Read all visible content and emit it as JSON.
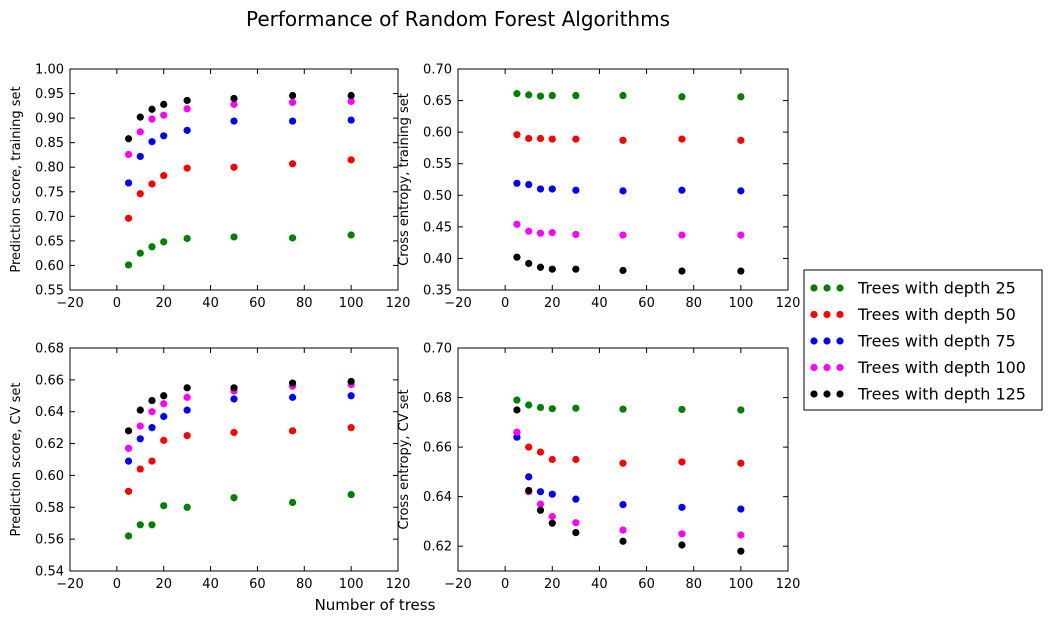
{
  "figure_title": "Performance of Random Forest Algorithms",
  "shared_xlabel": "Number of tress",
  "legend": {
    "placement": "right, outside",
    "entries": [
      {
        "label": "Trees with depth 25",
        "color": "#008000"
      },
      {
        "label": "Trees with depth 50",
        "color": "#ff0000"
      },
      {
        "label": "Trees with depth 75",
        "color": "#0000ff"
      },
      {
        "label": "Trees with depth 100",
        "color": "#ff00ff"
      },
      {
        "label": "Trees with depth 125",
        "color": "#000000"
      }
    ]
  },
  "chart_data": [
    {
      "type": "scatter",
      "position": "top-left",
      "ylabel": "Prediction score, training set",
      "xlim": [
        -20,
        120
      ],
      "xticks": [
        -20,
        0,
        20,
        40,
        60,
        80,
        100,
        120
      ],
      "xtick_labels": [
        "−20",
        "0",
        "20",
        "40",
        "60",
        "80",
        "100",
        "120"
      ],
      "ylim": [
        0.55,
        1.0
      ],
      "yticks": [
        0.55,
        0.6,
        0.65,
        0.7,
        0.75,
        0.8,
        0.85,
        0.9,
        0.95,
        1.0
      ],
      "ytick_labels": [
        "0.55",
        "0.60",
        "0.65",
        "0.70",
        "0.75",
        "0.80",
        "0.85",
        "0.90",
        "0.95",
        "1.00"
      ],
      "x": [
        5,
        10,
        15,
        20,
        30,
        50,
        75,
        100
      ],
      "series": [
        {
          "name": "Trees with depth 25",
          "color": "#008000",
          "values": [
            0.601,
            0.625,
            0.638,
            0.648,
            0.655,
            0.658,
            0.656,
            0.662
          ]
        },
        {
          "name": "Trees with depth 50",
          "color": "#ff0000",
          "values": [
            0.696,
            0.746,
            0.766,
            0.783,
            0.798,
            0.8,
            0.807,
            0.815
          ]
        },
        {
          "name": "Trees with depth 75",
          "color": "#0000ff",
          "values": [
            0.768,
            0.822,
            0.852,
            0.864,
            0.875,
            0.894,
            0.894,
            0.896
          ]
        },
        {
          "name": "Trees with depth 100",
          "color": "#ff00ff",
          "values": [
            0.826,
            0.872,
            0.898,
            0.906,
            0.919,
            0.928,
            0.932,
            0.934
          ]
        },
        {
          "name": "Trees with depth 125",
          "color": "#000000",
          "values": [
            0.858,
            0.902,
            0.918,
            0.928,
            0.936,
            0.94,
            0.946,
            0.946
          ]
        }
      ]
    },
    {
      "type": "scatter",
      "position": "top-right",
      "ylabel": "Cross entropy, training set",
      "xlim": [
        -20,
        120
      ],
      "xticks": [
        -20,
        0,
        20,
        40,
        60,
        80,
        100,
        120
      ],
      "xtick_labels": [
        "−20",
        "0",
        "20",
        "40",
        "60",
        "80",
        "100",
        "120"
      ],
      "ylim": [
        0.35,
        0.7
      ],
      "yticks": [
        0.35,
        0.4,
        0.45,
        0.5,
        0.55,
        0.6,
        0.65,
        0.7
      ],
      "ytick_labels": [
        "0.35",
        "0.40",
        "0.45",
        "0.50",
        "0.55",
        "0.60",
        "0.65",
        "0.70"
      ],
      "x": [
        5,
        10,
        15,
        20,
        30,
        50,
        75,
        100
      ],
      "series": [
        {
          "name": "Trees with depth 25",
          "color": "#008000",
          "values": [
            0.661,
            0.659,
            0.657,
            0.658,
            0.658,
            0.658,
            0.656,
            0.656
          ]
        },
        {
          "name": "Trees with depth 50",
          "color": "#ff0000",
          "values": [
            0.596,
            0.59,
            0.59,
            0.589,
            0.589,
            0.587,
            0.589,
            0.587
          ]
        },
        {
          "name": "Trees with depth 75",
          "color": "#0000ff",
          "values": [
            0.519,
            0.517,
            0.51,
            0.51,
            0.508,
            0.507,
            0.508,
            0.507
          ]
        },
        {
          "name": "Trees with depth 100",
          "color": "#ff00ff",
          "values": [
            0.454,
            0.443,
            0.44,
            0.441,
            0.438,
            0.437,
            0.437,
            0.437
          ]
        },
        {
          "name": "Trees with depth 125",
          "color": "#000000",
          "values": [
            0.402,
            0.392,
            0.386,
            0.383,
            0.383,
            0.381,
            0.38,
            0.38
          ]
        }
      ]
    },
    {
      "type": "scatter",
      "position": "bottom-left",
      "ylabel": "Prediction score, CV set",
      "xlim": [
        -20,
        120
      ],
      "xticks": [
        -20,
        0,
        20,
        40,
        60,
        80,
        100,
        120
      ],
      "xtick_labels": [
        "−20",
        "0",
        "20",
        "40",
        "60",
        "80",
        "100",
        "120"
      ],
      "ylim": [
        0.54,
        0.68
      ],
      "yticks": [
        0.54,
        0.56,
        0.58,
        0.6,
        0.62,
        0.64,
        0.66,
        0.68
      ],
      "ytick_labels": [
        "0.54",
        "0.56",
        "0.58",
        "0.60",
        "0.62",
        "0.64",
        "0.66",
        "0.68"
      ],
      "x": [
        5,
        10,
        15,
        20,
        30,
        50,
        75,
        100
      ],
      "series": [
        {
          "name": "Trees with depth 25",
          "color": "#008000",
          "values": [
            0.562,
            0.569,
            0.569,
            0.581,
            0.58,
            0.586,
            0.583,
            0.588
          ]
        },
        {
          "name": "Trees with depth 50",
          "color": "#ff0000",
          "values": [
            0.59,
            0.604,
            0.609,
            0.622,
            0.625,
            0.627,
            0.628,
            0.63
          ]
        },
        {
          "name": "Trees with depth 75",
          "color": "#0000ff",
          "values": [
            0.609,
            0.623,
            0.63,
            0.637,
            0.641,
            0.648,
            0.649,
            0.65
          ]
        },
        {
          "name": "Trees with depth 100",
          "color": "#ff00ff",
          "values": [
            0.617,
            0.631,
            0.64,
            0.645,
            0.649,
            0.653,
            0.656,
            0.657
          ]
        },
        {
          "name": "Trees with depth 125",
          "color": "#000000",
          "values": [
            0.628,
            0.641,
            0.647,
            0.65,
            0.655,
            0.655,
            0.658,
            0.659
          ]
        }
      ]
    },
    {
      "type": "scatter",
      "position": "bottom-right",
      "ylabel": "Cross entropy, CV set",
      "xlim": [
        -20,
        120
      ],
      "xticks": [
        -20,
        0,
        20,
        40,
        60,
        80,
        100,
        120
      ],
      "xtick_labels": [
        "−20",
        "0",
        "20",
        "40",
        "60",
        "80",
        "100",
        "120"
      ],
      "ylim": [
        0.61,
        0.7
      ],
      "yticks": [
        0.62,
        0.64,
        0.66,
        0.68,
        0.7
      ],
      "ytick_labels": [
        "0.62",
        "0.64",
        "0.66",
        "0.68",
        "0.70"
      ],
      "x": [
        5,
        10,
        15,
        20,
        30,
        50,
        75,
        100
      ],
      "series": [
        {
          "name": "Trees with depth 25",
          "color": "#008000",
          "values": [
            0.679,
            0.677,
            0.676,
            0.6755,
            0.6757,
            0.6753,
            0.6752,
            0.675
          ]
        },
        {
          "name": "Trees with depth 50",
          "color": "#ff0000",
          "values": [
            0.666,
            0.66,
            0.658,
            0.655,
            0.655,
            0.6535,
            0.654,
            0.6535
          ]
        },
        {
          "name": "Trees with depth 75",
          "color": "#0000ff",
          "values": [
            0.664,
            0.648,
            0.642,
            0.641,
            0.639,
            0.6368,
            0.6357,
            0.635
          ]
        },
        {
          "name": "Trees with depth 100",
          "color": "#ff00ff",
          "values": [
            0.666,
            0.642,
            0.637,
            0.632,
            0.6295,
            0.6265,
            0.625,
            0.6245
          ]
        },
        {
          "name": "Trees with depth 125",
          "color": "#000000",
          "values": [
            0.675,
            0.6425,
            0.6345,
            0.6293,
            0.6255,
            0.622,
            0.6205,
            0.618
          ]
        }
      ]
    }
  ]
}
